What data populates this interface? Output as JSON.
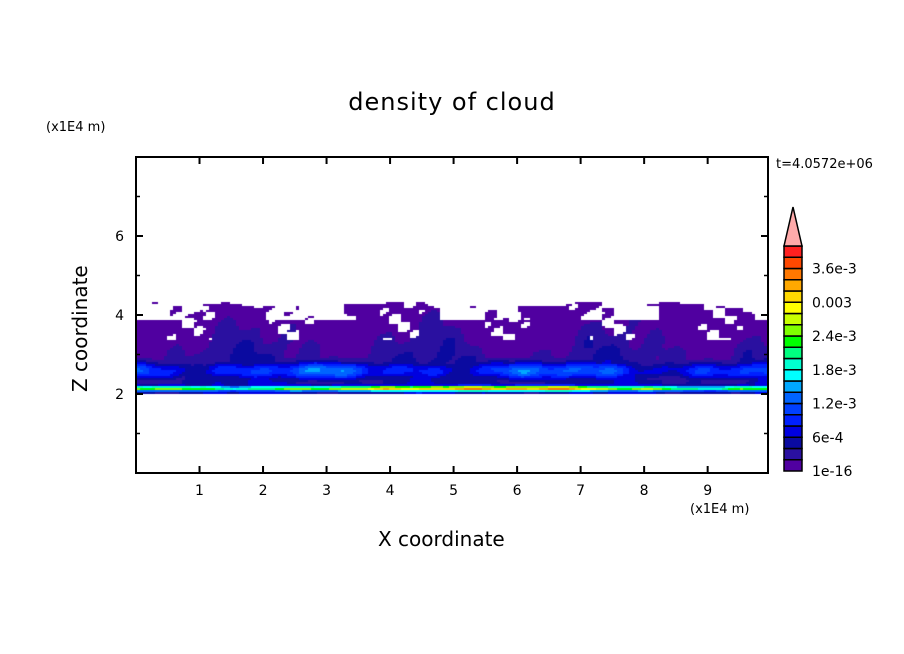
{
  "chart_data": {
    "type": "heatmap",
    "title": "density of cloud",
    "xlabel": "X coordinate",
    "ylabel": "Z coordinate",
    "x_unit": "(x1E4 m)",
    "y_unit": "(x1E4 m)",
    "annotation": "t=4.0572e+06",
    "xlim": [
      0,
      9.95
    ],
    "ylim": [
      0,
      8
    ],
    "x_ticks": [
      "1",
      "2",
      "3",
      "4",
      "5",
      "6",
      "7",
      "8",
      "9"
    ],
    "y_ticks": [
      "2",
      "4",
      "6"
    ],
    "cloud_layer_z": [
      2.0,
      4.3
    ],
    "max_density_z": 2.15,
    "colorbar": {
      "labels": [
        "1e-16",
        "6e-4",
        "1.2e-3",
        "1.8e-3",
        "2.4e-3",
        "0.003",
        "3.6e-3"
      ],
      "level_step": 0.0002,
      "extend": "max",
      "colors": [
        "#5000a0",
        "#2a10a0",
        "#0a0aa0",
        "#0000e0",
        "#0020ff",
        "#0040ff",
        "#0064ff",
        "#00a8ff",
        "#00ffff",
        "#00ffd0",
        "#00ff80",
        "#00ff00",
        "#80ff00",
        "#c8ff00",
        "#ffff00",
        "#ffd800",
        "#ffa800",
        "#ff7800",
        "#ff4800",
        "#ff2020"
      ],
      "over_color": "#ffaaaa"
    }
  }
}
